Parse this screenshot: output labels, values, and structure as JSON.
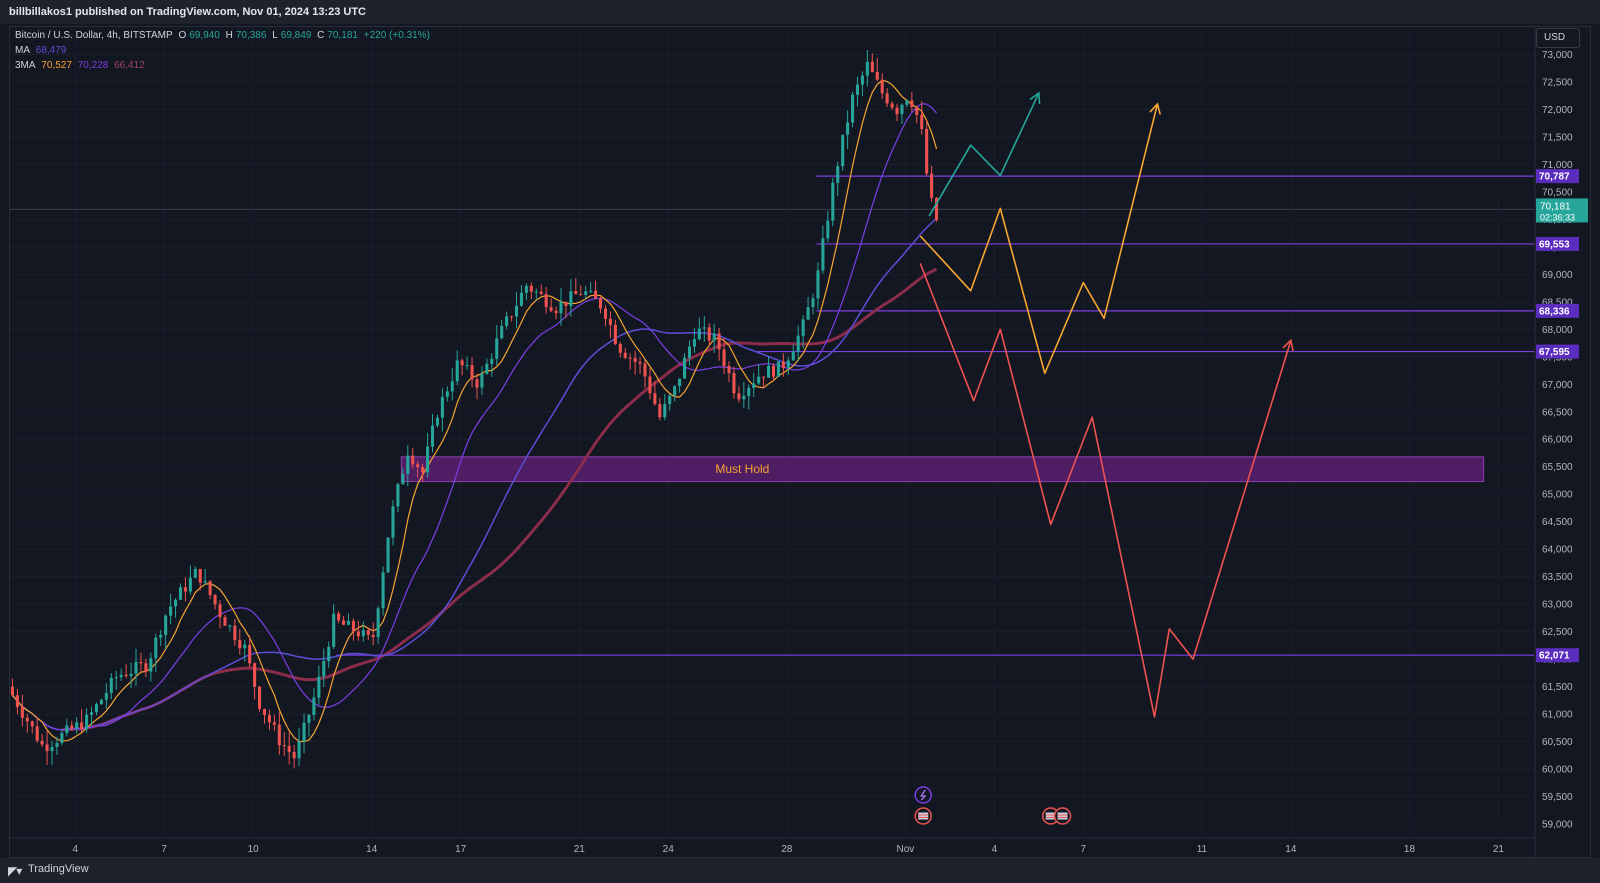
{
  "header": {
    "publish_line": "billbillakos1 published on TradingView.com, Nov 01, 2024 13:23 UTC"
  },
  "legend": {
    "symbol": "Bitcoin / U.S. Dollar, 4h, BITSTAMP",
    "open_key": "O",
    "open": "69,940",
    "high_key": "H",
    "high": "70,386",
    "low_key": "L",
    "low": "69,849",
    "close_key": "C",
    "close": "70,181",
    "change": "+220 (+0.31%)",
    "ma_label": "MA",
    "ma_value": "68,479",
    "ma3_label": "3MA",
    "ma3_values": [
      "70,527",
      "70,228",
      "66,412"
    ]
  },
  "currency": "USD",
  "footer": {
    "brand": "TradingView",
    "logo_icon": "tradingview-logo-icon"
  },
  "colors": {
    "background": "#131722",
    "up": "#26a69a",
    "down": "#ef5350",
    "ma_fast": "#f7a531",
    "ma_mid": "#7b3fe4",
    "ma_slow": "#5b4fd8",
    "ma_long": "#8a2c4a",
    "level_line": "#7b3fe4",
    "path_green": "#26a69a",
    "path_orange": "#f7a531",
    "path_red": "#ef5350",
    "zone_fill": "#5a1f6e",
    "zone_text": "#f7a531"
  },
  "chart_data": {
    "type": "candlestick",
    "price_axis": {
      "ticks": [
        "73,000",
        "72,500",
        "72,000",
        "71,500",
        "71,000",
        "70,500",
        "70,000",
        "69,500",
        "69,000",
        "68,500",
        "68,000",
        "67,500",
        "67,000",
        "66,500",
        "66,000",
        "65,500",
        "65,000",
        "64,500",
        "64,000",
        "63,500",
        "63,000",
        "62,500",
        "62,000",
        "61,500",
        "61,000",
        "60,500",
        "60,000",
        "59,500",
        "59,000"
      ],
      "range": [
        58800,
        73500
      ]
    },
    "time_axis": {
      "ticks": [
        "4",
        "7",
        "10",
        "14",
        "17",
        "21",
        "24",
        "28",
        "Nov",
        "4",
        "7",
        "11",
        "14",
        "18",
        "21"
      ],
      "tick_days": [
        4,
        7,
        10,
        14,
        17,
        21,
        24,
        28,
        32,
        35,
        38,
        42,
        45,
        49,
        52
      ],
      "range_days": [
        1.8,
        53.2
      ]
    },
    "current_price": {
      "label": "70,181",
      "countdown": "02:36:33",
      "value": 70181
    },
    "levels": [
      {
        "label": "70,787",
        "value": 70787,
        "start_day": 29
      },
      {
        "label": "69,553",
        "value": 69553,
        "start_day": 29
      },
      {
        "label": "68,336",
        "value": 68336,
        "start_day": 29
      },
      {
        "label": "67,595",
        "value": 67595,
        "start_day": 27
      },
      {
        "label": "62,071",
        "value": 62071,
        "start_day": 12.8
      }
    ],
    "zone": {
      "label": "Must Hold",
      "low": 65230,
      "high": 65680,
      "start_day": 15,
      "end_day": 51.5
    },
    "projections": [
      {
        "name": "green",
        "points": [
          [
            32.8,
            70060
          ],
          [
            34.2,
            71350
          ],
          [
            35.2,
            70800
          ],
          [
            36.5,
            72300
          ]
        ]
      },
      {
        "name": "orange",
        "points": [
          [
            32.5,
            69700
          ],
          [
            34.2,
            68700
          ],
          [
            35.2,
            70200
          ],
          [
            36.7,
            67200
          ],
          [
            38.0,
            68850
          ],
          [
            38.7,
            68200
          ],
          [
            40.5,
            72100
          ]
        ]
      },
      {
        "name": "red",
        "points": [
          [
            32.5,
            69200
          ],
          [
            34.3,
            66700
          ],
          [
            35.2,
            68000
          ],
          [
            36.9,
            64450
          ],
          [
            38.3,
            66400
          ],
          [
            40.4,
            60950
          ],
          [
            40.9,
            62550
          ],
          [
            41.7,
            62000
          ],
          [
            45.0,
            67800
          ]
        ]
      }
    ],
    "events": [
      {
        "icon": "lightning-icon",
        "day": 32.6,
        "row": 1
      },
      {
        "icon": "us-flag-icon",
        "day": 32.6,
        "row": 2
      },
      {
        "icon": "us-flag-icon",
        "day": 36.9,
        "row": 2
      },
      {
        "icon": "us-flag-icon",
        "day": 37.3,
        "row": 2
      }
    ]
  }
}
